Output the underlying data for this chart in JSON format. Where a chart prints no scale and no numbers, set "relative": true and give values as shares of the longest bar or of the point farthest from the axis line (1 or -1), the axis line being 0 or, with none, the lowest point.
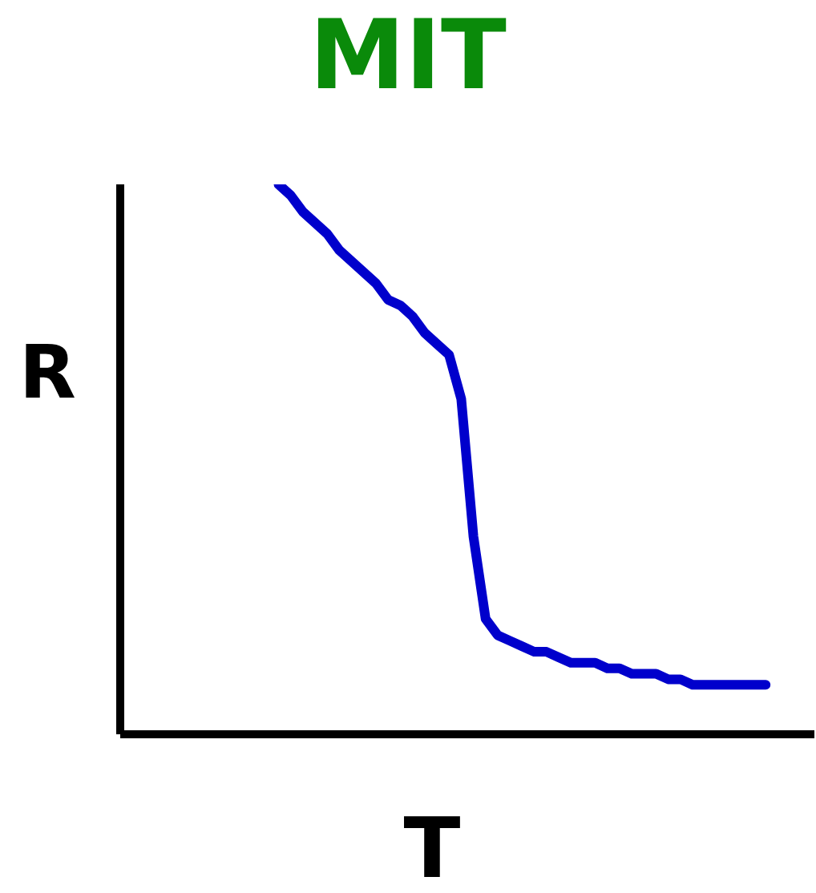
{
  "chart_data": {
    "type": "line",
    "title": "MIT",
    "xlabel": "T",
    "ylabel": "R",
    "relative": true,
    "grid": false,
    "legend": false,
    "marker": "none",
    "line_style": "solid",
    "categories": [
      null,
      null,
      null,
      null,
      null,
      null,
      null,
      null,
      null,
      null,
      null,
      null,
      null,
      null,
      null,
      null,
      null,
      null,
      null,
      null,
      null,
      null,
      null,
      null,
      null,
      null,
      null,
      null,
      null,
      null,
      null,
      null,
      null,
      null,
      null,
      null,
      null,
      null,
      null,
      null,
      null,
      null,
      null,
      null,
      null,
      null,
      null,
      null,
      null,
      null,
      null,
      null,
      null,
      null,
      null,
      null,
      null,
      null
    ],
    "series": [
      {
        "color": "#0000cc",
        "values": [
          null,
          null,
          null,
          null,
          null,
          null,
          null,
          null,
          null,
          null,
          null,
          null,
          null,
          1,
          0.98,
          0.95,
          0.93,
          0.91,
          0.88,
          0.86,
          0.84,
          0.82,
          0.79,
          0.78,
          0.76,
          0.73,
          0.71,
          0.69,
          0.61,
          0.36,
          0.21,
          0.18,
          0.17,
          0.16,
          0.15,
          0.15,
          0.14,
          0.13,
          0.13,
          0.13,
          0.12,
          0.12,
          0.11,
          0.11,
          0.11,
          0.1,
          0.1,
          0.09,
          0.09,
          0.09,
          0.09,
          0.09,
          0.09,
          0.09,
          null,
          null,
          null,
          null
        ]
      }
    ]
  }
}
